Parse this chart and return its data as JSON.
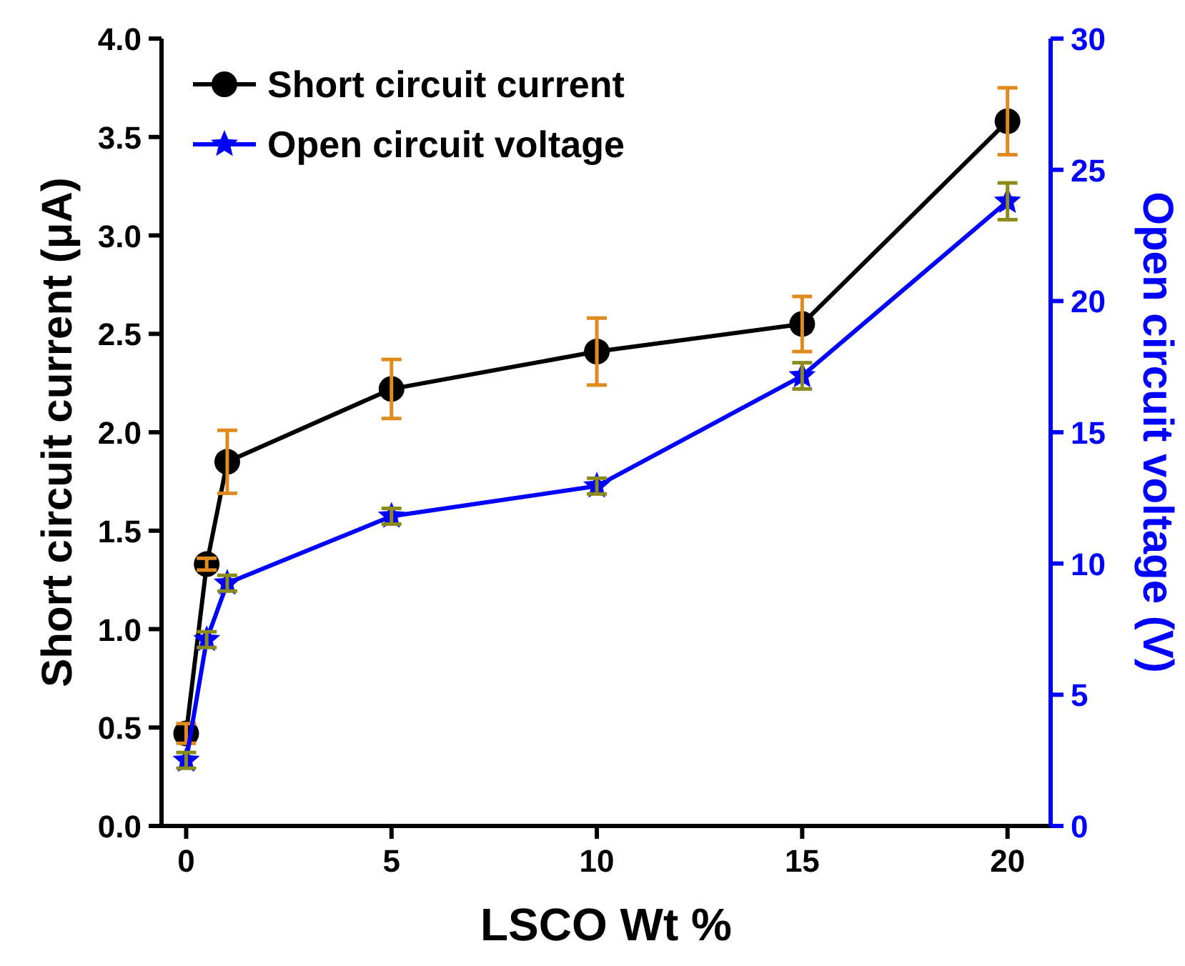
{
  "chart_data": {
    "type": "line",
    "xlabel": "LSCO Wt %",
    "ylabel": "Short circuit current (μA)",
    "y2label": "Open circuit voltage (V)",
    "x": [
      0,
      0.5,
      1,
      5,
      10,
      15,
      20
    ],
    "series": [
      {
        "name": "Short circuit current",
        "color": "#000000",
        "marker": "circle",
        "values": [
          0.47,
          1.33,
          1.85,
          2.22,
          2.41,
          2.55,
          3.58
        ],
        "errors": [
          0.05,
          0.03,
          0.16,
          0.15,
          0.17,
          0.14,
          0.17
        ]
      },
      {
        "name": "Open circuit voltage",
        "color": "#0000ff",
        "marker": "star",
        "axis": "y2",
        "values": [
          2.5,
          7.1,
          9.25,
          11.8,
          12.95,
          17.15,
          23.8
        ],
        "errors": [
          0.3,
          0.3,
          0.3,
          0.3,
          0.3,
          0.5,
          0.7
        ]
      }
    ],
    "xlim": [
      -0.6,
      21.05
    ],
    "xticks": [
      0,
      5,
      10,
      15,
      20
    ],
    "ylim": [
      0,
      4
    ],
    "yticks": [
      {
        "value": 0,
        "label": "0.0"
      },
      {
        "value": 0.5,
        "label": "0.5"
      },
      {
        "value": 1,
        "label": "1.0"
      },
      {
        "value": 1.5,
        "label": "1.5"
      },
      {
        "value": 2,
        "label": "2.0"
      },
      {
        "value": 2.5,
        "label": "2.5"
      },
      {
        "value": 3,
        "label": "3.0"
      },
      {
        "value": 3.5,
        "label": "3.5"
      },
      {
        "value": 4,
        "label": "4.0"
      }
    ],
    "y2lim": [
      0,
      30
    ],
    "y2ticks": [
      0,
      5,
      10,
      15,
      20,
      25,
      30
    ],
    "legend": "top left",
    "grid": false
  }
}
